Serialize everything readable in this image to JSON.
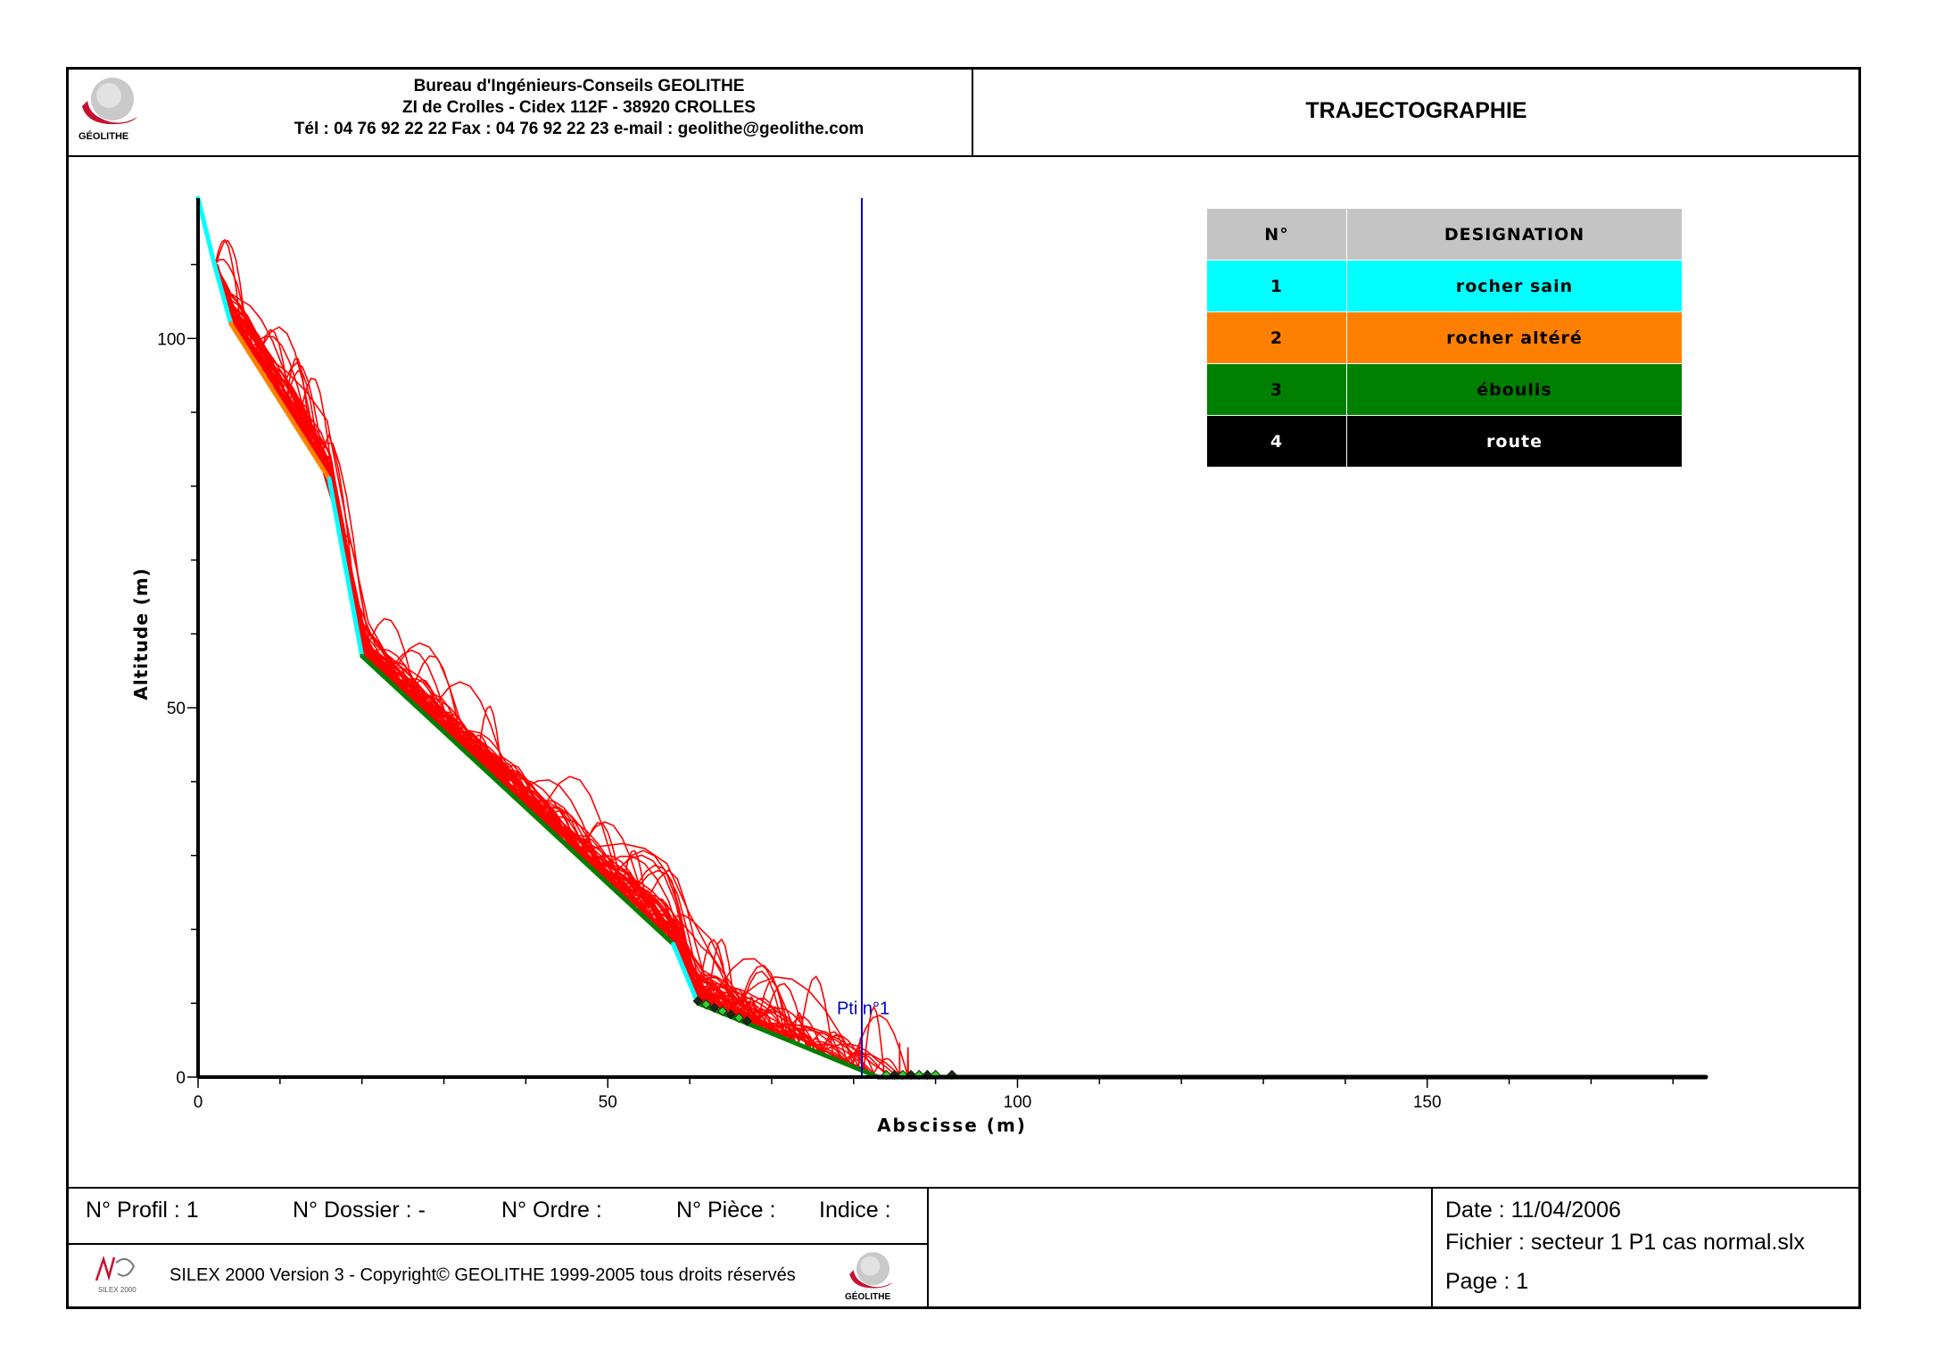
{
  "header": {
    "company_line1": "Bureau d'Ingénieurs-Conseils GEOLITHE",
    "company_line2": "ZI de Crolles - Cidex 112F - 38920 CROLLES",
    "company_line3": "Tél : 04 76 92 22 22   Fax : 04 76 92 22 23   e-mail : geolithe@geolithe.com",
    "logo_text": "GÉOLITHE",
    "title": "TRAJECTOGRAPHIE"
  },
  "legend": {
    "col_num": "N°",
    "col_designation": "DESIGNATION",
    "rows": [
      {
        "num": "1",
        "label": "rocher sain",
        "bg": "#00ffff",
        "fg": "#000000"
      },
      {
        "num": "2",
        "label": "rocher altéré",
        "bg": "#ff8000",
        "fg": "#000000"
      },
      {
        "num": "3",
        "label": "éboulis",
        "bg": "#008000",
        "fg": "#000000"
      },
      {
        "num": "4",
        "label": "route",
        "bg": "#000000",
        "fg": "#ffffff"
      }
    ]
  },
  "chart_data": {
    "type": "line",
    "xlabel": "Abscisse  (m)",
    "ylabel": "Altitude (m)",
    "xlim": [
      0,
      184
    ],
    "ylim": [
      0,
      119
    ],
    "x_ticks": [
      0,
      50,
      100,
      150
    ],
    "y_ticks": [
      0,
      50,
      100
    ],
    "profile_segments": [
      {
        "material": "1",
        "color": "#00ffff",
        "points": [
          [
            0,
            119
          ],
          [
            2,
            110
          ],
          [
            4,
            102
          ]
        ]
      },
      {
        "material": "2",
        "color": "#ff8000",
        "points": [
          [
            4,
            102
          ],
          [
            16,
            81
          ]
        ]
      },
      {
        "material": "1",
        "color": "#00ffff",
        "points": [
          [
            16,
            81
          ],
          [
            20,
            57
          ]
        ]
      },
      {
        "material": "3",
        "color": "#008000",
        "points": [
          [
            20,
            57
          ],
          [
            58,
            18
          ]
        ]
      },
      {
        "material": "1",
        "color": "#00ffff",
        "points": [
          [
            58,
            18
          ],
          [
            61,
            10
          ]
        ]
      },
      {
        "material": "3",
        "color": "#008000",
        "points": [
          [
            61,
            10
          ],
          [
            83,
            0
          ]
        ]
      },
      {
        "material": "4",
        "color": "#000000",
        "points": [
          [
            83,
            0
          ],
          [
            184,
            0
          ]
        ]
      }
    ],
    "trajectory_color": "#ff0000",
    "trajectory_count": 45,
    "interception_point": {
      "label": "Pti n°1",
      "x": 81,
      "color": "#0000cc"
    },
    "stop_points_x": [
      61,
      62,
      63,
      64,
      65,
      66,
      67,
      84,
      85,
      86,
      87,
      88,
      89,
      90,
      92
    ]
  },
  "footer": {
    "profil": "N° Profil : 1",
    "dossier": "N° Dossier :    -",
    "ordre": "N°  Ordre :",
    "piece": "N° Pièce :",
    "indice": "Indice :",
    "copyright": "SILEX 2000 Version 3 - Copyright© GEOLITHE 1999-2005 tous droits réservés",
    "silex_logo_text": "SILEX 2000",
    "logo_text": "GÉOLITHE",
    "date": "Date :  11/04/2006",
    "fichier": "Fichier :  secteur 1 P1 cas normal.slx",
    "page": "Page : 1"
  }
}
